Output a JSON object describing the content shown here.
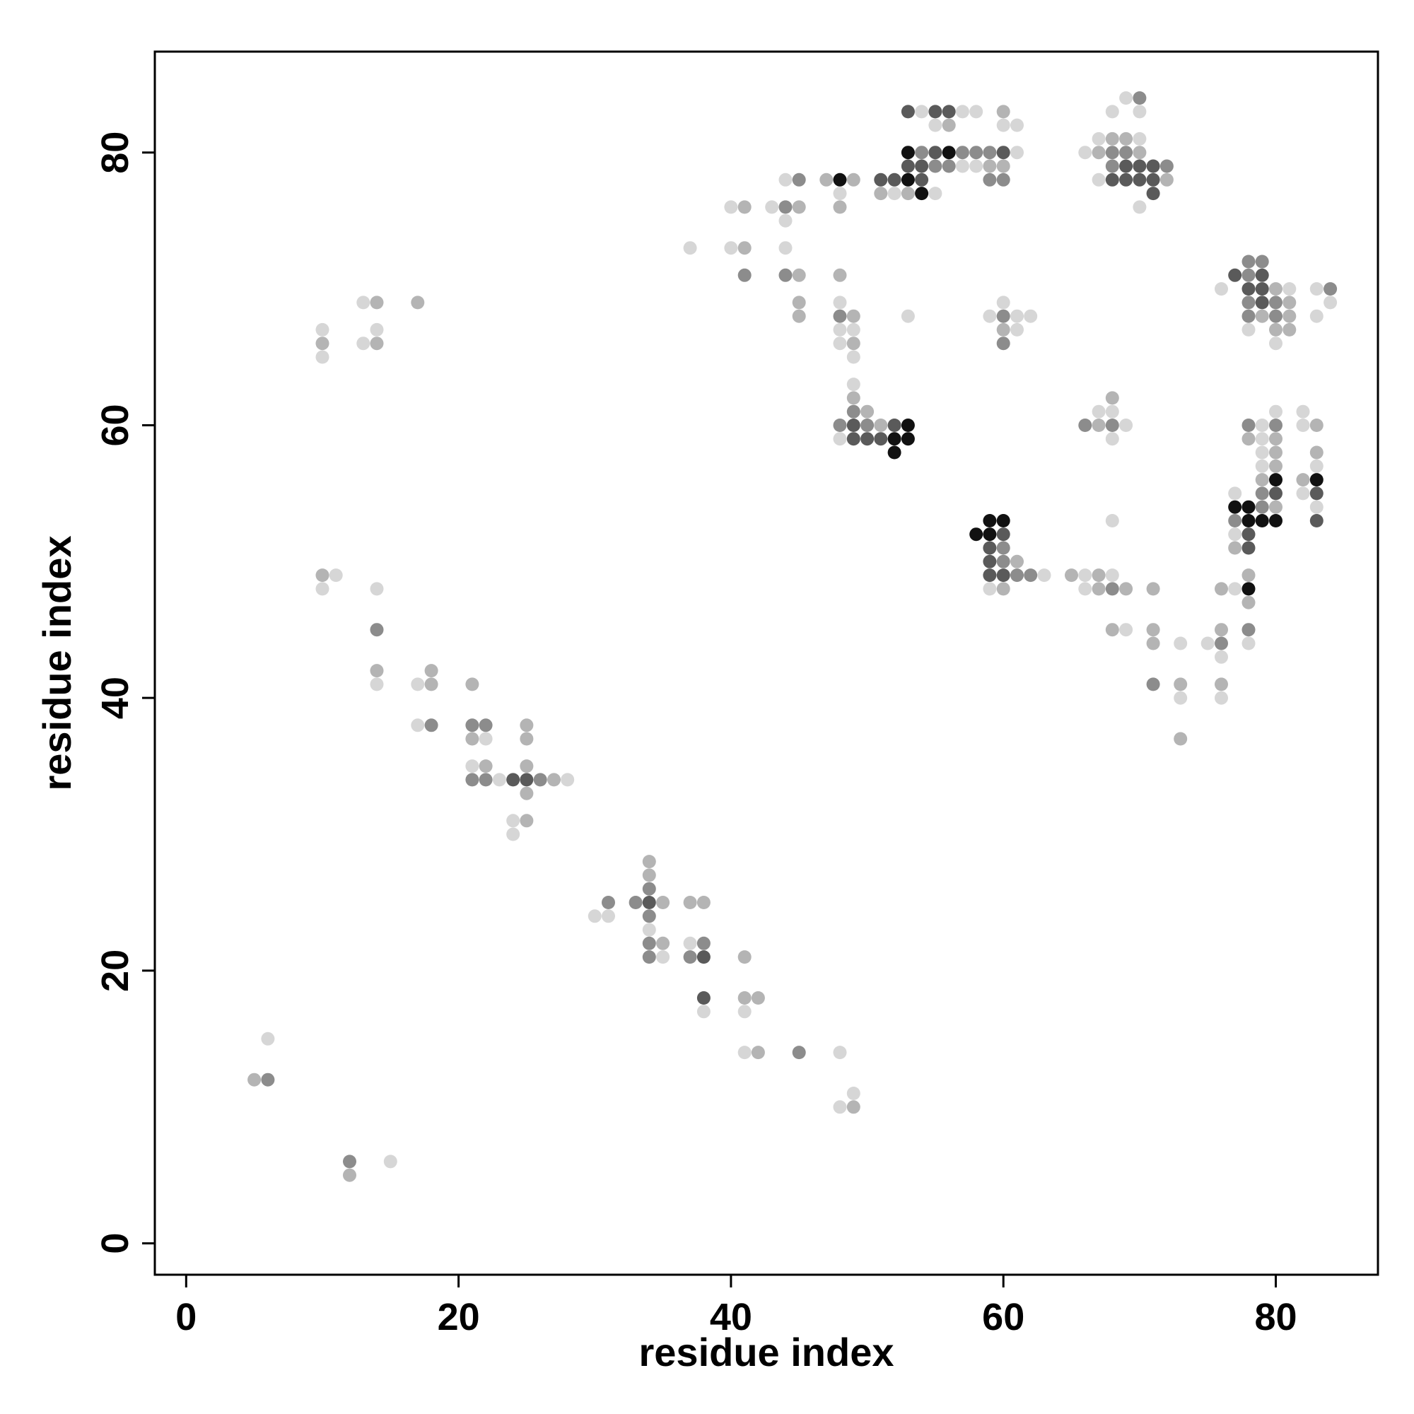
{
  "chart_data": {
    "type": "scatter",
    "title": "",
    "xlabel": "residue index",
    "ylabel": "residue index",
    "xlim": [
      -2.3,
      87.5
    ],
    "ylim": [
      -2.3,
      87.4
    ],
    "xticks": [
      0,
      20,
      40,
      60,
      80
    ],
    "yticks": [
      0,
      20,
      40,
      60,
      80
    ],
    "grid": false,
    "legend": "none",
    "colors": {
      "axis": "#000000",
      "background": "#ffffff"
    },
    "intensity_levels": {
      "0": "#d6d6d6",
      "1": "#b4b4b4",
      "2": "#8c8c8c",
      "3": "#5a5a5a",
      "4": "#111111"
    },
    "point_columns": [
      "x",
      "y",
      "level"
    ],
    "points": [
      [
        5,
        12,
        1
      ],
      [
        6,
        12,
        2
      ],
      [
        6,
        15,
        0
      ],
      [
        10,
        65,
        0
      ],
      [
        10,
        66,
        1
      ],
      [
        10,
        67,
        0
      ],
      [
        10,
        48,
        0
      ],
      [
        10,
        49,
        1
      ],
      [
        11,
        49,
        0
      ],
      [
        12,
        5,
        1
      ],
      [
        12,
        6,
        2
      ],
      [
        15,
        6,
        0
      ],
      [
        13,
        66,
        0
      ],
      [
        14,
        66,
        1
      ],
      [
        14,
        67,
        0
      ],
      [
        13,
        69,
        0
      ],
      [
        14,
        69,
        1
      ],
      [
        17,
        69,
        1
      ],
      [
        14,
        48,
        0
      ],
      [
        14,
        45,
        2
      ],
      [
        14,
        42,
        1
      ],
      [
        14,
        41,
        0
      ],
      [
        17,
        41,
        0
      ],
      [
        18,
        41,
        1
      ],
      [
        18,
        42,
        1
      ],
      [
        17,
        38,
        0
      ],
      [
        18,
        38,
        2
      ],
      [
        21,
        41,
        1
      ],
      [
        21,
        38,
        2
      ],
      [
        22,
        38,
        2
      ],
      [
        21,
        37,
        1
      ],
      [
        22,
        37,
        0
      ],
      [
        21,
        35,
        0
      ],
      [
        22,
        35,
        1
      ],
      [
        21,
        34,
        2
      ],
      [
        22,
        34,
        2
      ],
      [
        23,
        34,
        0
      ],
      [
        24,
        34,
        3
      ],
      [
        25,
        34,
        3
      ],
      [
        26,
        34,
        2
      ],
      [
        27,
        34,
        1
      ],
      [
        28,
        34,
        0
      ],
      [
        25,
        38,
        1
      ],
      [
        25,
        37,
        1
      ],
      [
        25,
        35,
        1
      ],
      [
        25,
        33,
        1
      ],
      [
        24,
        31,
        0
      ],
      [
        25,
        31,
        1
      ],
      [
        24,
        30,
        0
      ],
      [
        30,
        24,
        0
      ],
      [
        31,
        24,
        0
      ],
      [
        31,
        25,
        2
      ],
      [
        34,
        28,
        1
      ],
      [
        34,
        27,
        1
      ],
      [
        34,
        26,
        2
      ],
      [
        33,
        25,
        2
      ],
      [
        34,
        25,
        3
      ],
      [
        35,
        25,
        1
      ],
      [
        34,
        24,
        2
      ],
      [
        34,
        23,
        0
      ],
      [
        34,
        22,
        2
      ],
      [
        35,
        22,
        1
      ],
      [
        34,
        21,
        2
      ],
      [
        35,
        21,
        0
      ],
      [
        37,
        25,
        1
      ],
      [
        38,
        25,
        1
      ],
      [
        37,
        22,
        0
      ],
      [
        38,
        22,
        2
      ],
      [
        37,
        21,
        2
      ],
      [
        38,
        21,
        3
      ],
      [
        38,
        18,
        3
      ],
      [
        38,
        17,
        0
      ],
      [
        41,
        21,
        1
      ],
      [
        41,
        18,
        1
      ],
      [
        42,
        18,
        1
      ],
      [
        41,
        17,
        0
      ],
      [
        41,
        14,
        0
      ],
      [
        42,
        14,
        1
      ],
      [
        45,
        14,
        2
      ],
      [
        48,
        14,
        0
      ],
      [
        49,
        11,
        0
      ],
      [
        48,
        10,
        0
      ],
      [
        49,
        10,
        1
      ],
      [
        37,
        73,
        0
      ],
      [
        40,
        76,
        0
      ],
      [
        41,
        76,
        1
      ],
      [
        40,
        73,
        0
      ],
      [
        41,
        73,
        1
      ],
      [
        41,
        71,
        2
      ],
      [
        43,
        76,
        0
      ],
      [
        44,
        76,
        2
      ],
      [
        45,
        76,
        1
      ],
      [
        44,
        75,
        0
      ],
      [
        44,
        73,
        0
      ],
      [
        44,
        71,
        2
      ],
      [
        45,
        71,
        1
      ],
      [
        45,
        69,
        1
      ],
      [
        45,
        68,
        1
      ],
      [
        44,
        78,
        0
      ],
      [
        45,
        78,
        2
      ],
      [
        47,
        78,
        1
      ],
      [
        48,
        78,
        4
      ],
      [
        49,
        78,
        1
      ],
      [
        48,
        77,
        0
      ],
      [
        48,
        76,
        1
      ],
      [
        48,
        71,
        1
      ],
      [
        48,
        69,
        0
      ],
      [
        48,
        68,
        2
      ],
      [
        49,
        68,
        1
      ],
      [
        48,
        67,
        0
      ],
      [
        49,
        67,
        0
      ],
      [
        48,
        66,
        0
      ],
      [
        49,
        66,
        1
      ],
      [
        49,
        65,
        0
      ],
      [
        49,
        63,
        0
      ],
      [
        49,
        62,
        1
      ],
      [
        49,
        61,
        2
      ],
      [
        50,
        61,
        1
      ],
      [
        48,
        60,
        2
      ],
      [
        49,
        60,
        3
      ],
      [
        50,
        60,
        2
      ],
      [
        51,
        60,
        1
      ],
      [
        52,
        60,
        3
      ],
      [
        53,
        60,
        4
      ],
      [
        48,
        59,
        0
      ],
      [
        49,
        59,
        3
      ],
      [
        50,
        59,
        3
      ],
      [
        51,
        59,
        3
      ],
      [
        52,
        59,
        4
      ],
      [
        53,
        59,
        4
      ],
      [
        52,
        58,
        4
      ],
      [
        51,
        78,
        3
      ],
      [
        52,
        78,
        3
      ],
      [
        53,
        78,
        4
      ],
      [
        54,
        78,
        3
      ],
      [
        51,
        77,
        1
      ],
      [
        52,
        77,
        0
      ],
      [
        53,
        77,
        1
      ],
      [
        54,
        77,
        4
      ],
      [
        55,
        77,
        0
      ],
      [
        53,
        80,
        4
      ],
      [
        54,
        80,
        2
      ],
      [
        55,
        80,
        3
      ],
      [
        56,
        80,
        4
      ],
      [
        57,
        80,
        2
      ],
      [
        58,
        80,
        2
      ],
      [
        59,
        80,
        2
      ],
      [
        60,
        80,
        3
      ],
      [
        61,
        80,
        0
      ],
      [
        53,
        79,
        3
      ],
      [
        54,
        79,
        3
      ],
      [
        55,
        79,
        2
      ],
      [
        56,
        79,
        2
      ],
      [
        57,
        79,
        0
      ],
      [
        58,
        79,
        0
      ],
      [
        59,
        79,
        1
      ],
      [
        60,
        79,
        1
      ],
      [
        59,
        78,
        2
      ],
      [
        60,
        78,
        2
      ],
      [
        53,
        83,
        3
      ],
      [
        54,
        83,
        0
      ],
      [
        55,
        83,
        3
      ],
      [
        56,
        83,
        3
      ],
      [
        57,
        83,
        0
      ],
      [
        58,
        83,
        0
      ],
      [
        55,
        82,
        0
      ],
      [
        56,
        82,
        1
      ],
      [
        60,
        83,
        1
      ],
      [
        60,
        82,
        0
      ],
      [
        61,
        82,
        0
      ],
      [
        53,
        68,
        0
      ],
      [
        59,
        68,
        0
      ],
      [
        60,
        68,
        2
      ],
      [
        61,
        68,
        0
      ],
      [
        62,
        68,
        0
      ],
      [
        60,
        69,
        0
      ],
      [
        60,
        67,
        1
      ],
      [
        61,
        67,
        0
      ],
      [
        60,
        66,
        2
      ],
      [
        58,
        52,
        4
      ],
      [
        59,
        52,
        4
      ],
      [
        60,
        52,
        3
      ],
      [
        59,
        53,
        4
      ],
      [
        60,
        53,
        4
      ],
      [
        59,
        51,
        3
      ],
      [
        60,
        51,
        2
      ],
      [
        59,
        50,
        3
      ],
      [
        60,
        50,
        2
      ],
      [
        61,
        50,
        1
      ],
      [
        59,
        49,
        3
      ],
      [
        60,
        49,
        3
      ],
      [
        61,
        49,
        2
      ],
      [
        62,
        49,
        2
      ],
      [
        63,
        49,
        0
      ],
      [
        59,
        48,
        0
      ],
      [
        60,
        48,
        1
      ],
      [
        65,
        49,
        1
      ],
      [
        66,
        49,
        0
      ],
      [
        67,
        49,
        1
      ],
      [
        68,
        49,
        0
      ],
      [
        66,
        48,
        0
      ],
      [
        67,
        48,
        1
      ],
      [
        68,
        48,
        2
      ],
      [
        69,
        48,
        1
      ],
      [
        68,
        53,
        0
      ],
      [
        68,
        45,
        1
      ],
      [
        69,
        45,
        0
      ],
      [
        66,
        60,
        2
      ],
      [
        67,
        60,
        1
      ],
      [
        68,
        60,
        2
      ],
      [
        69,
        60,
        0
      ],
      [
        67,
        61,
        0
      ],
      [
        68,
        61,
        0
      ],
      [
        68,
        62,
        1
      ],
      [
        68,
        59,
        0
      ],
      [
        66,
        80,
        0
      ],
      [
        67,
        80,
        1
      ],
      [
        68,
        80,
        2
      ],
      [
        69,
        80,
        2
      ],
      [
        70,
        80,
        1
      ],
      [
        67,
        81,
        0
      ],
      [
        68,
        81,
        1
      ],
      [
        69,
        81,
        1
      ],
      [
        70,
        81,
        0
      ],
      [
        68,
        79,
        2
      ],
      [
        69,
        79,
        3
      ],
      [
        70,
        79,
        3
      ],
      [
        71,
        79,
        3
      ],
      [
        72,
        79,
        2
      ],
      [
        67,
        78,
        0
      ],
      [
        68,
        78,
        3
      ],
      [
        69,
        78,
        3
      ],
      [
        70,
        78,
        3
      ],
      [
        71,
        78,
        3
      ],
      [
        72,
        78,
        1
      ],
      [
        71,
        77,
        3
      ],
      [
        70,
        76,
        0
      ],
      [
        68,
        83,
        0
      ],
      [
        69,
        84,
        0
      ],
      [
        70,
        84,
        2
      ],
      [
        70,
        83,
        0
      ],
      [
        71,
        48,
        1
      ],
      [
        71,
        45,
        1
      ],
      [
        71,
        44,
        1
      ],
      [
        71,
        41,
        2
      ],
      [
        73,
        44,
        0
      ],
      [
        73,
        41,
        1
      ],
      [
        73,
        40,
        0
      ],
      [
        73,
        37,
        1
      ],
      [
        75,
        44,
        0
      ],
      [
        76,
        44,
        2
      ],
      [
        76,
        45,
        1
      ],
      [
        76,
        43,
        0
      ],
      [
        76,
        41,
        1
      ],
      [
        76,
        40,
        0
      ],
      [
        76,
        48,
        1
      ],
      [
        77,
        48,
        0
      ],
      [
        78,
        49,
        1
      ],
      [
        78,
        48,
        4
      ],
      [
        78,
        47,
        1
      ],
      [
        78,
        45,
        2
      ],
      [
        78,
        44,
        0
      ],
      [
        77,
        55,
        0
      ],
      [
        77,
        54,
        4
      ],
      [
        78,
        54,
        4
      ],
      [
        79,
        54,
        2
      ],
      [
        80,
        54,
        1
      ],
      [
        77,
        53,
        2
      ],
      [
        78,
        53,
        4
      ],
      [
        79,
        53,
        4
      ],
      [
        80,
        53,
        4
      ],
      [
        77,
        52,
        0
      ],
      [
        78,
        52,
        3
      ],
      [
        77,
        51,
        1
      ],
      [
        78,
        51,
        3
      ],
      [
        78,
        60,
        2
      ],
      [
        79,
        60,
        0
      ],
      [
        80,
        60,
        2
      ],
      [
        78,
        59,
        1
      ],
      [
        79,
        59,
        0
      ],
      [
        80,
        59,
        1
      ],
      [
        79,
        58,
        0
      ],
      [
        80,
        58,
        1
      ],
      [
        79,
        57,
        0
      ],
      [
        80,
        57,
        1
      ],
      [
        79,
        56,
        1
      ],
      [
        80,
        56,
        4
      ],
      [
        79,
        55,
        2
      ],
      [
        80,
        55,
        3
      ],
      [
        80,
        61,
        0
      ],
      [
        82,
        61,
        0
      ],
      [
        82,
        60,
        0
      ],
      [
        83,
        60,
        1
      ],
      [
        83,
        58,
        1
      ],
      [
        83,
        57,
        0
      ],
      [
        82,
        56,
        1
      ],
      [
        83,
        56,
        4
      ],
      [
        82,
        55,
        0
      ],
      [
        83,
        55,
        3
      ],
      [
        83,
        54,
        0
      ],
      [
        83,
        53,
        3
      ],
      [
        76,
        70,
        0
      ],
      [
        77,
        71,
        3
      ],
      [
        78,
        71,
        2
      ],
      [
        79,
        71,
        3
      ],
      [
        78,
        72,
        2
      ],
      [
        79,
        72,
        2
      ],
      [
        78,
        70,
        3
      ],
      [
        79,
        70,
        3
      ],
      [
        80,
        70,
        1
      ],
      [
        81,
        70,
        0
      ],
      [
        78,
        69,
        2
      ],
      [
        79,
        69,
        3
      ],
      [
        80,
        69,
        2
      ],
      [
        81,
        69,
        1
      ],
      [
        78,
        68,
        2
      ],
      [
        79,
        68,
        1
      ],
      [
        80,
        68,
        2
      ],
      [
        81,
        68,
        1
      ],
      [
        78,
        67,
        0
      ],
      [
        80,
        67,
        1
      ],
      [
        81,
        67,
        1
      ],
      [
        80,
        66,
        0
      ],
      [
        83,
        70,
        0
      ],
      [
        84,
        70,
        2
      ],
      [
        83,
        68,
        0
      ],
      [
        84,
        69,
        0
      ]
    ]
  }
}
